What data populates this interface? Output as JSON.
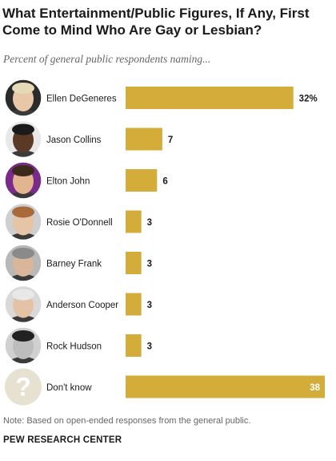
{
  "title": "What Entertainment/Public Figures, If Any, First Come to Mind Who Are Gay or Lesbian?",
  "subtitle": "Percent of general public respondents naming...",
  "note": "Note: Based on open-ended responses from the general public.",
  "source": "PEW RESEARCH CENTER",
  "colors": {
    "bar": "#D4AC3A",
    "text": "#1a1a1a",
    "value_inside": "#ffffff",
    "placeholder_circle": "#E6E1D0",
    "placeholder_glyph": "#ffffff"
  },
  "chart_data": {
    "type": "bar",
    "orientation": "horizontal",
    "categories": [
      "Ellen DeGeneres",
      "Jason Collins",
      "Elton John",
      "Rosie O'Donnell",
      "Barney Frank",
      "Anderson Cooper",
      "Rock Hudson",
      "Don't know"
    ],
    "value_labels": [
      "32%",
      "7",
      "6",
      "3",
      "3",
      "3",
      "3",
      "38"
    ],
    "values": [
      32,
      7,
      6,
      3,
      3,
      3,
      3,
      38
    ],
    "photos": [
      "portrait",
      "portrait",
      "portrait",
      "portrait",
      "portrait",
      "portrait",
      "portrait",
      "question-mark"
    ],
    "question_glyph": "?",
    "xlim": [
      0,
      38
    ],
    "grid": false,
    "legend": "none"
  }
}
